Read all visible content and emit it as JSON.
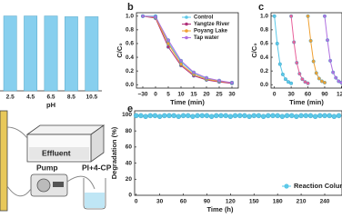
{
  "chart_data": [
    {
      "type": "bar",
      "x_label": "pH",
      "categories": [
        "2.5",
        "4.5",
        "6.5",
        "8.5",
        "10.5"
      ],
      "values": [
        97,
        97,
        97,
        96,
        96
      ],
      "color": "#87cfee",
      "ylim": [
        0,
        100
      ]
    },
    {
      "type": "line",
      "panel": "b",
      "x_label": "Time (min)",
      "y_label": "C/C₀",
      "categories": [
        "−30",
        "0",
        "5",
        "10",
        "15",
        "20",
        "25",
        "30"
      ],
      "series": [
        {
          "name": "Control",
          "color": "#5bc8e8",
          "values": [
            1,
            1,
            0.62,
            0.33,
            0.17,
            0.09,
            0.05,
            0.03
          ]
        },
        {
          "name": "Yangtze River",
          "color": "#b0307a",
          "values": [
            1,
            0.97,
            0.55,
            0.28,
            0.13,
            0.07,
            0.04,
            0.02
          ]
        },
        {
          "name": "Poyang Lake",
          "color": "#f0a030",
          "values": [
            1,
            0.98,
            0.6,
            0.3,
            0.15,
            0.08,
            0.05,
            0.03
          ]
        },
        {
          "name": "Tap water",
          "color": "#b070e0",
          "values": [
            1,
            0.99,
            0.65,
            0.35,
            0.18,
            0.1,
            0.06,
            0.03
          ]
        }
      ],
      "ylim": [
        -0.05,
        1.05
      ],
      "yticks": [
        {
          "value": 0,
          "label": "0.0"
        },
        {
          "value": 0.2,
          "label": "0.2"
        },
        {
          "value": 0.4,
          "label": "0.4"
        },
        {
          "value": 0.6,
          "label": "0.6"
        },
        {
          "value": 0.8,
          "label": "0.8"
        },
        {
          "value": 1,
          "label": "1.0"
        }
      ],
      "legend": "upper right"
    },
    {
      "type": "line",
      "panel": "c",
      "x_label": "Time (min)",
      "y_label": "C/C₀",
      "series": [
        {
          "color": "#5bc8e8",
          "x": [
            0,
            5,
            10,
            15,
            20,
            25,
            30
          ],
          "values": [
            1,
            0.6,
            0.3,
            0.15,
            0.08,
            0.04,
            0.02
          ]
        },
        {
          "color": "#e8609a",
          "x": [
            30,
            35,
            40,
            45,
            50,
            55,
            60
          ],
          "values": [
            1,
            0.62,
            0.32,
            0.16,
            0.08,
            0.04,
            0.02
          ]
        },
        {
          "color": "#f0a030",
          "x": [
            60,
            65,
            70,
            75,
            80,
            85,
            90
          ],
          "values": [
            1,
            0.64,
            0.34,
            0.17,
            0.09,
            0.05,
            0.03
          ]
        },
        {
          "color": "#b070e0",
          "x": [
            90,
            95,
            100,
            105,
            110,
            115,
            120
          ],
          "values": [
            1,
            0.65,
            0.35,
            0.18,
            0.1,
            0.05,
            0.03
          ]
        }
      ],
      "xlim": [
        -6,
        121
      ],
      "xticks": [
        0,
        30,
        60,
        90,
        120
      ],
      "ylim": [
        -0.05,
        1.05
      ],
      "yticks": [
        {
          "value": 0,
          "label": "0.0"
        },
        {
          "value": 0.2,
          "label": "0.2"
        },
        {
          "value": 0.4,
          "label": "0.4"
        },
        {
          "value": 0.6,
          "label": "0.6"
        },
        {
          "value": 0.8,
          "label": "0.8"
        },
        {
          "value": 1,
          "label": "1.0"
        }
      ]
    },
    {
      "type": "line",
      "panel": "e",
      "x_label": "Time (h)",
      "y_label": "Degradation (%)",
      "x": [
        0,
        6,
        12,
        18,
        24,
        30,
        36,
        42,
        48,
        54,
        60,
        66,
        72,
        78,
        84,
        90,
        96,
        102,
        108,
        114,
        120,
        126,
        132,
        138,
        144,
        150,
        156,
        162,
        168,
        174,
        180,
        186,
        192,
        198,
        204,
        210,
        216,
        222,
        228,
        234,
        240,
        246,
        252,
        258
      ],
      "series": [
        {
          "name": "Reaction Column",
          "color": "#5bc8e8",
          "values": [
            99,
            99,
            98,
            99,
            99,
            98,
            99,
            99,
            99,
            98,
            99,
            99,
            98,
            99,
            99,
            99,
            98,
            99,
            99,
            99,
            98,
            99,
            99,
            99,
            98,
            99,
            99,
            98,
            99,
            99,
            99,
            98,
            99,
            99,
            98,
            99,
            99,
            99,
            98,
            99,
            99,
            99,
            98,
            99
          ]
        }
      ],
      "xlim": [
        -2,
        262
      ],
      "xticks": [
        0,
        30,
        60,
        90,
        120,
        150,
        180,
        210,
        240
      ],
      "ylim": [
        0,
        105
      ],
      "yticks": [
        0,
        20,
        40,
        60,
        80,
        100
      ],
      "legend": "lower right"
    }
  ],
  "diagram": {
    "effluent": "Effluent",
    "pump": "Pump",
    "feed": "PI+4-CP"
  }
}
